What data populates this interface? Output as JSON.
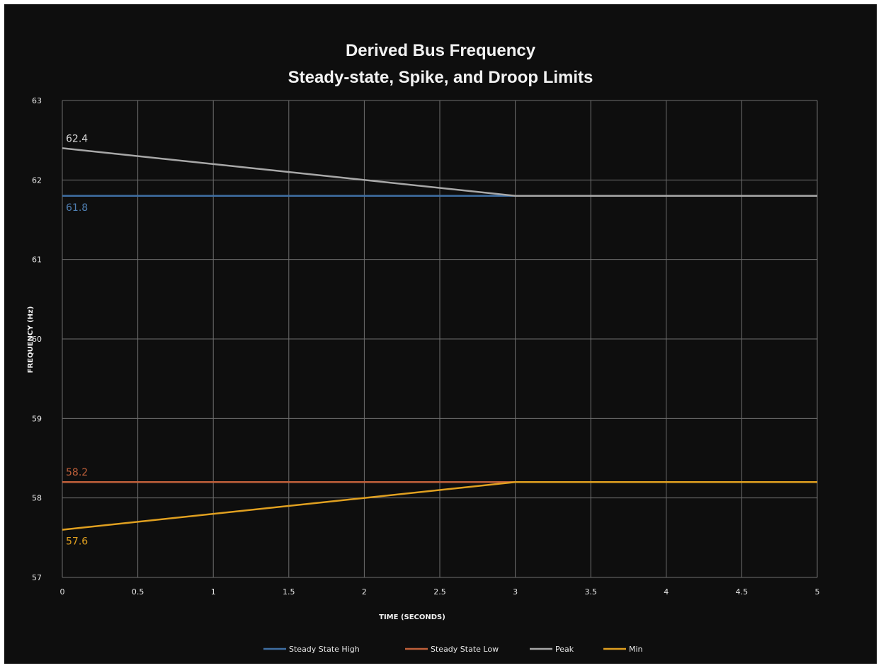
{
  "chart_data": {
    "type": "line",
    "title": [
      "Derived Bus Frequency",
      "Steady-state, Spike, and Droop Limits"
    ],
    "xlabel": "TIME (SECONDS)",
    "ylabel": "FREQUENCY (Hz)",
    "xlim": [
      0,
      5
    ],
    "ylim": [
      57,
      63
    ],
    "x_ticks": [
      0,
      0.5,
      1,
      1.5,
      2,
      2.5,
      3,
      3.5,
      4,
      4.5,
      5
    ],
    "y_ticks": [
      57,
      58,
      59,
      60,
      61,
      62,
      63
    ],
    "grid": true,
    "legend_position": "bottom",
    "series": [
      {
        "name": "Steady State High",
        "color": "#3f6fa3",
        "x": [
          0,
          3,
          5
        ],
        "y": [
          61.8,
          61.8,
          61.8
        ]
      },
      {
        "name": "Steady State Low",
        "color": "#c0603a",
        "x": [
          0,
          3,
          5
        ],
        "y": [
          58.2,
          58.2,
          58.2
        ]
      },
      {
        "name": "Peak",
        "color": "#a8a8a8",
        "x": [
          0,
          3,
          5
        ],
        "y": [
          62.4,
          61.8,
          61.8
        ]
      },
      {
        "name": "Min",
        "color": "#e0a020",
        "x": [
          0,
          3,
          5
        ],
        "y": [
          57.6,
          58.2,
          58.2
        ]
      }
    ],
    "annotations": [
      {
        "series": "Peak",
        "text": "62.4",
        "x": 0,
        "y": 62.4,
        "color": "#d9d9d9",
        "position": "above"
      },
      {
        "series": "Steady State High",
        "text": "61.8",
        "x": 0,
        "y": 61.8,
        "color": "#4f7fb3",
        "position": "below"
      },
      {
        "series": "Steady State Low",
        "text": "58.2",
        "x": 0,
        "y": 58.2,
        "color": "#c0603a",
        "position": "above"
      },
      {
        "series": "Min",
        "text": "57.6",
        "x": 0,
        "y": 57.6,
        "color": "#e0a020",
        "position": "below"
      }
    ]
  }
}
